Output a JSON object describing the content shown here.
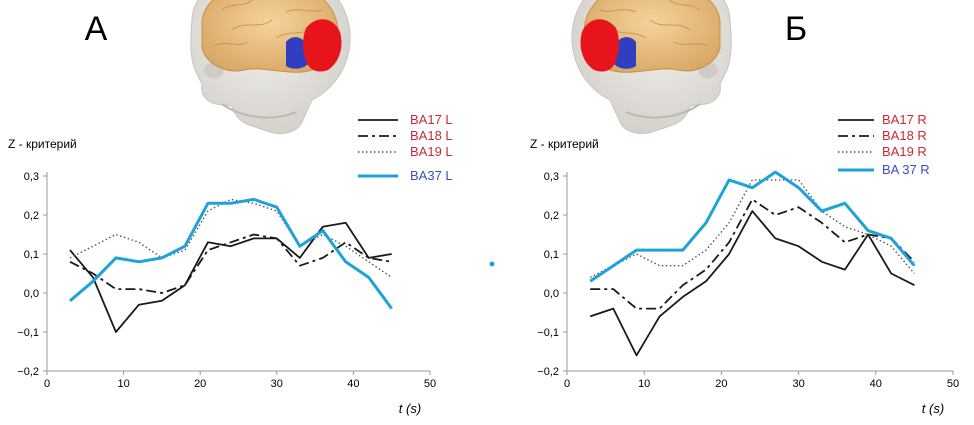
{
  "colors": {
    "black": "#1a1a1a",
    "blue": "#1ea3d8",
    "red_label": "#cc2a33",
    "blue_label": "#3a4fc2",
    "axis": "#999999"
  },
  "panels": [
    {
      "letter": "А",
      "brain_view": "left-hemisphere",
      "chart_data": {
        "type": "line",
        "ylabel": "Z - критерий",
        "xlabel": "t (s)",
        "xlim": [
          0,
          50
        ],
        "ylim": [
          -0.2,
          0.3
        ],
        "x_ticks": [
          "0",
          "10",
          "20",
          "30",
          "40",
          "50"
        ],
        "y_ticks": [
          "−0,2",
          "−0,1",
          "0,0",
          "0,1",
          "0,2",
          "0,3"
        ],
        "legend_position": "top-right",
        "series": [
          {
            "name": "BA17 L",
            "style": "solid",
            "color": "#1a1a1a",
            "x": [
              3,
              6,
              9,
              12,
              15,
              18,
              21,
              24,
              27,
              30,
              33,
              36,
              39,
              42,
              45
            ],
            "y": [
              0.11,
              0.04,
              -0.1,
              -0.03,
              -0.02,
              0.02,
              0.13,
              0.12,
              0.14,
              0.14,
              0.09,
              0.17,
              0.18,
              0.09,
              0.1
            ]
          },
          {
            "name": "BA18 L",
            "style": "dash-dot",
            "color": "#1a1a1a",
            "x": [
              3,
              6,
              9,
              12,
              15,
              18,
              21,
              24,
              27,
              30,
              33,
              36,
              39,
              42,
              45
            ],
            "y": [
              0.08,
              0.05,
              0.01,
              0.01,
              0.0,
              0.02,
              0.11,
              0.13,
              0.15,
              0.14,
              0.07,
              0.09,
              0.13,
              0.09,
              0.08
            ]
          },
          {
            "name": "BA19 L",
            "style": "dotted",
            "color": "#555555",
            "x": [
              3,
              6,
              9,
              12,
              15,
              18,
              21,
              24,
              27,
              30,
              33,
              36,
              39,
              42,
              45
            ],
            "y": [
              0.09,
              0.12,
              0.15,
              0.13,
              0.09,
              0.11,
              0.21,
              0.24,
              0.23,
              0.21,
              0.12,
              0.15,
              0.12,
              0.08,
              0.04
            ]
          },
          {
            "name": "BA37 L",
            "style": "thick",
            "color": "#1ea3d8",
            "x": [
              3,
              6,
              9,
              12,
              15,
              18,
              21,
              24,
              27,
              30,
              33,
              36,
              39,
              42,
              45
            ],
            "y": [
              -0.02,
              0.03,
              0.09,
              0.08,
              0.09,
              0.12,
              0.23,
              0.23,
              0.24,
              0.22,
              0.12,
              0.16,
              0.08,
              0.04,
              -0.04
            ]
          }
        ]
      }
    },
    {
      "letter": "Б",
      "brain_view": "right-hemisphere",
      "chart_data": {
        "type": "line",
        "ylabel": "Z - критерий",
        "xlabel": "t (s)",
        "xlim": [
          0,
          50
        ],
        "ylim": [
          -0.2,
          0.3
        ],
        "x_ticks": [
          "0",
          "10",
          "20",
          "30",
          "40",
          "50"
        ],
        "y_ticks": [
          "−0,2",
          "−0,1",
          "0,0",
          "0,1",
          "0,2",
          "0,3"
        ],
        "legend_position": "top-right",
        "series": [
          {
            "name": "BA17 R",
            "style": "solid",
            "color": "#1a1a1a",
            "x": [
              3,
              6,
              9,
              12,
              15,
              18,
              21,
              24,
              27,
              30,
              33,
              36,
              39,
              42,
              45
            ],
            "y": [
              -0.06,
              -0.04,
              -0.16,
              -0.06,
              -0.01,
              0.03,
              0.1,
              0.21,
              0.14,
              0.12,
              0.08,
              0.06,
              0.15,
              0.05,
              0.02
            ]
          },
          {
            "name": "BA18 R",
            "style": "dash-dot",
            "color": "#1a1a1a",
            "x": [
              3,
              6,
              9,
              12,
              15,
              18,
              21,
              24,
              27,
              30,
              33,
              36,
              39,
              42,
              45
            ],
            "y": [
              0.01,
              0.01,
              -0.04,
              -0.04,
              0.02,
              0.06,
              0.13,
              0.24,
              0.2,
              0.22,
              0.18,
              0.13,
              0.15,
              0.14,
              0.08
            ]
          },
          {
            "name": "BA19 R",
            "style": "dotted",
            "color": "#555555",
            "x": [
              3,
              6,
              9,
              12,
              15,
              18,
              21,
              24,
              27,
              30,
              33,
              36,
              39,
              42,
              45
            ],
            "y": [
              0.04,
              0.07,
              0.1,
              0.07,
              0.07,
              0.11,
              0.18,
              0.29,
              0.29,
              0.29,
              0.21,
              0.17,
              0.15,
              0.12,
              0.05
            ]
          },
          {
            "name": "BA 37 R",
            "style": "thick",
            "color": "#1ea3d8",
            "x": [
              3,
              6,
              9,
              12,
              15,
              18,
              21,
              24,
              27,
              30,
              33,
              36,
              39,
              42,
              45
            ],
            "y": [
              0.03,
              0.07,
              0.11,
              0.11,
              0.11,
              0.18,
              0.29,
              0.27,
              0.31,
              0.27,
              0.21,
              0.23,
              0.16,
              0.14,
              0.07
            ]
          }
        ]
      }
    }
  ]
}
